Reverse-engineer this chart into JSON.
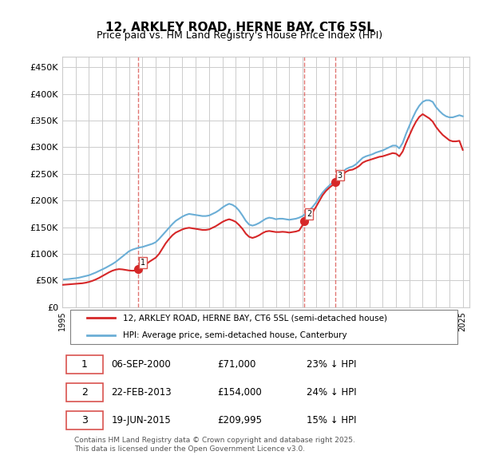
{
  "title": "12, ARKLEY ROAD, HERNE BAY, CT6 5SL",
  "subtitle": "Price paid vs. HM Land Registry's House Price Index (HPI)",
  "ylabel_ticks": [
    "£0",
    "£50K",
    "£100K",
    "£150K",
    "£200K",
    "£250K",
    "£300K",
    "£350K",
    "£400K",
    "£450K"
  ],
  "ytick_values": [
    0,
    50000,
    100000,
    150000,
    200000,
    250000,
    300000,
    350000,
    400000,
    450000
  ],
  "ylim": [
    0,
    470000
  ],
  "xlim_start": 1995.0,
  "xlim_end": 2025.5,
  "hpi_color": "#6baed6",
  "price_color": "#d62728",
  "sale_color": "#d62728",
  "vline_color": "#d9534f",
  "grid_color": "#cccccc",
  "bg_color": "#ffffff",
  "legend_label_red": "12, ARKLEY ROAD, HERNE BAY, CT6 5SL (semi-detached house)",
  "legend_label_blue": "HPI: Average price, semi-detached house, Canterbury",
  "sales": [
    {
      "num": 1,
      "date": 2000.68,
      "price": 71000,
      "label": "1"
    },
    {
      "num": 2,
      "date": 2013.14,
      "price": 154000,
      "label": "2"
    },
    {
      "num": 3,
      "date": 2015.47,
      "price": 209995,
      "label": "3"
    }
  ],
  "table_rows": [
    {
      "num": "1",
      "date": "06-SEP-2000",
      "price": "£71,000",
      "pct": "23% ↓ HPI"
    },
    {
      "num": "2",
      "date": "22-FEB-2013",
      "price": "£154,000",
      "pct": "24% ↓ HPI"
    },
    {
      "num": "3",
      "date": "19-JUN-2015",
      "price": "£209,995",
      "pct": "15% ↓ HPI"
    }
  ],
  "footer": "Contains HM Land Registry data © Crown copyright and database right 2025.\nThis data is licensed under the Open Government Licence v3.0.",
  "hpi_data_x": [
    1995.0,
    1995.25,
    1995.5,
    1995.75,
    1996.0,
    1996.25,
    1996.5,
    1996.75,
    1997.0,
    1997.25,
    1997.5,
    1997.75,
    1998.0,
    1998.25,
    1998.5,
    1998.75,
    1999.0,
    1999.25,
    1999.5,
    1999.75,
    2000.0,
    2000.25,
    2000.5,
    2000.75,
    2001.0,
    2001.25,
    2001.5,
    2001.75,
    2002.0,
    2002.25,
    2002.5,
    2002.75,
    2003.0,
    2003.25,
    2003.5,
    2003.75,
    2004.0,
    2004.25,
    2004.5,
    2004.75,
    2005.0,
    2005.25,
    2005.5,
    2005.75,
    2006.0,
    2006.25,
    2006.5,
    2006.75,
    2007.0,
    2007.25,
    2007.5,
    2007.75,
    2008.0,
    2008.25,
    2008.5,
    2008.75,
    2009.0,
    2009.25,
    2009.5,
    2009.75,
    2010.0,
    2010.25,
    2010.5,
    2010.75,
    2011.0,
    2011.25,
    2011.5,
    2011.75,
    2012.0,
    2012.25,
    2012.5,
    2012.75,
    2013.0,
    2013.25,
    2013.5,
    2013.75,
    2014.0,
    2014.25,
    2014.5,
    2014.75,
    2015.0,
    2015.25,
    2015.5,
    2015.75,
    2016.0,
    2016.25,
    2016.5,
    2016.75,
    2017.0,
    2017.25,
    2017.5,
    2017.75,
    2018.0,
    2018.25,
    2018.5,
    2018.75,
    2019.0,
    2019.25,
    2019.5,
    2019.75,
    2020.0,
    2020.25,
    2020.5,
    2020.75,
    2021.0,
    2021.25,
    2021.5,
    2021.75,
    2022.0,
    2022.25,
    2022.5,
    2022.75,
    2023.0,
    2023.25,
    2023.5,
    2023.75,
    2024.0,
    2024.25,
    2024.5,
    2024.75,
    2025.0
  ],
  "hpi_data_y": [
    52000,
    52500,
    53000,
    53800,
    54500,
    55500,
    57000,
    58500,
    60000,
    62500,
    65000,
    68000,
    71000,
    74000,
    77500,
    81000,
    85000,
    90000,
    95000,
    100000,
    105000,
    108000,
    110000,
    112000,
    113000,
    115000,
    117000,
    119000,
    122000,
    128000,
    135000,
    142000,
    149000,
    156000,
    162000,
    166000,
    170000,
    173000,
    175000,
    174000,
    173000,
    172000,
    171000,
    171000,
    172000,
    175000,
    178000,
    182000,
    187000,
    191000,
    194000,
    192000,
    188000,
    181000,
    172000,
    162000,
    155000,
    153000,
    155000,
    158000,
    162000,
    166000,
    168000,
    167000,
    165000,
    166000,
    166000,
    165000,
    164000,
    165000,
    166000,
    168000,
    171000,
    176000,
    182000,
    188000,
    196000,
    206000,
    215000,
    222000,
    228000,
    234000,
    240000,
    246000,
    253000,
    259000,
    262000,
    264000,
    268000,
    274000,
    280000,
    283000,
    285000,
    287000,
    290000,
    292000,
    294000,
    297000,
    300000,
    303000,
    303000,
    298000,
    308000,
    325000,
    340000,
    355000,
    368000,
    378000,
    385000,
    388000,
    388000,
    385000,
    375000,
    368000,
    362000,
    358000,
    356000,
    356000,
    358000,
    360000,
    358000
  ],
  "price_data_x": [
    1995.0,
    1995.25,
    1995.5,
    1995.75,
    1996.0,
    1996.25,
    1996.5,
    1996.75,
    1997.0,
    1997.25,
    1997.5,
    1997.75,
    1998.0,
    1998.25,
    1998.5,
    1998.75,
    1999.0,
    1999.25,
    1999.5,
    1999.75,
    2000.0,
    2000.25,
    2000.5,
    2000.75,
    2001.0,
    2001.25,
    2001.5,
    2001.75,
    2002.0,
    2002.25,
    2002.5,
    2002.75,
    2003.0,
    2003.25,
    2003.5,
    2003.75,
    2004.0,
    2004.25,
    2004.5,
    2004.75,
    2005.0,
    2005.25,
    2005.5,
    2005.75,
    2006.0,
    2006.25,
    2006.5,
    2006.75,
    2007.0,
    2007.25,
    2007.5,
    2007.75,
    2008.0,
    2008.25,
    2008.5,
    2008.75,
    2009.0,
    2009.25,
    2009.5,
    2009.75,
    2010.0,
    2010.25,
    2010.5,
    2010.75,
    2011.0,
    2011.25,
    2011.5,
    2011.75,
    2012.0,
    2012.25,
    2012.5,
    2012.75,
    2013.0,
    2013.25,
    2013.5,
    2013.75,
    2014.0,
    2014.25,
    2014.5,
    2014.75,
    2015.0,
    2015.25,
    2015.5,
    2015.75,
    2016.0,
    2016.25,
    2016.5,
    2016.75,
    2017.0,
    2017.25,
    2017.5,
    2017.75,
    2018.0,
    2018.25,
    2018.5,
    2018.75,
    2019.0,
    2019.25,
    2019.5,
    2019.75,
    2020.0,
    2020.25,
    2020.5,
    2020.75,
    2021.0,
    2021.25,
    2021.5,
    2021.75,
    2022.0,
    2022.25,
    2022.5,
    2022.75,
    2023.0,
    2023.25,
    2023.5,
    2023.75,
    2024.0,
    2024.25,
    2024.5,
    2024.75,
    2025.0
  ],
  "price_data_y": [
    42000,
    42500,
    43000,
    43500,
    44000,
    44500,
    45000,
    46000,
    47500,
    49500,
    52000,
    55000,
    58500,
    62000,
    65500,
    68500,
    70500,
    71500,
    71000,
    70000,
    69000,
    68500,
    69000,
    71000,
    75000,
    80000,
    85000,
    89000,
    93000,
    100000,
    110000,
    120000,
    128000,
    135000,
    140000,
    143000,
    146000,
    148000,
    149000,
    148000,
    147000,
    146000,
    145000,
    145000,
    146000,
    149000,
    152000,
    156000,
    160000,
    163000,
    165000,
    163000,
    160000,
    154000,
    147000,
    138000,
    132000,
    130000,
    132000,
    135000,
    139000,
    142000,
    143000,
    142000,
    141000,
    141000,
    141500,
    141000,
    140000,
    141000,
    142000,
    144000,
    154000,
    162000,
    170000,
    178000,
    188000,
    199000,
    210000,
    218000,
    224000,
    229000,
    235000,
    241000,
    248000,
    254000,
    257000,
    258000,
    261000,
    265000,
    271000,
    274000,
    276000,
    278000,
    280000,
    282000,
    283000,
    285000,
    287000,
    289000,
    288000,
    283000,
    292000,
    308000,
    322000,
    336000,
    348000,
    357000,
    362000,
    358000,
    354000,
    348000,
    338000,
    330000,
    323000,
    318000,
    313000,
    311000,
    311000,
    312000,
    295000
  ]
}
